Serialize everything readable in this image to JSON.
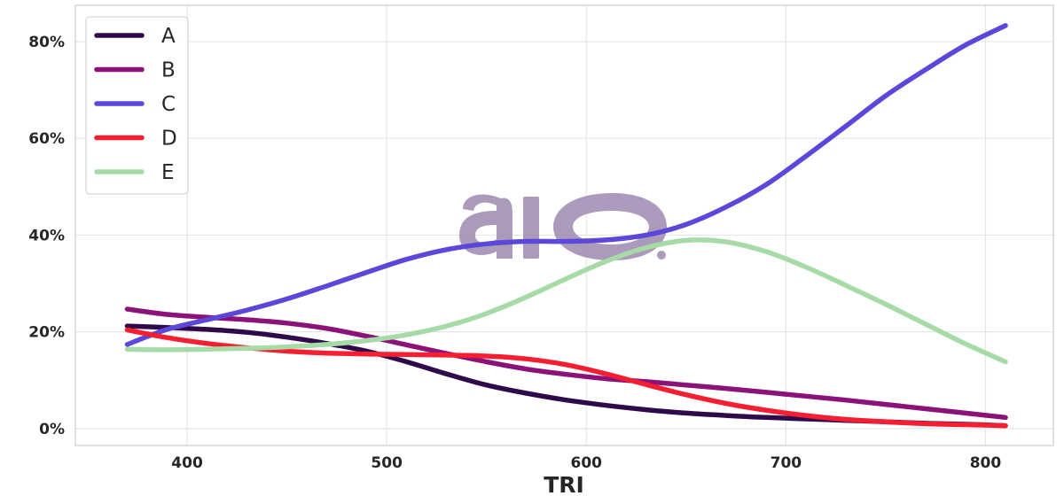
{
  "chart_data": {
    "type": "line",
    "title": "",
    "xlabel": "TRI",
    "ylabel": "",
    "xlim": [
      344,
      834
    ],
    "ylim": [
      -3.5,
      87.5
    ],
    "xticks": [
      400,
      500,
      600,
      700,
      800
    ],
    "yticks": [
      0,
      20,
      40,
      60,
      80
    ],
    "ytick_labels": [
      "0%",
      "20%",
      "40%",
      "60%",
      "80%"
    ],
    "grid": true,
    "legend_position": "top-left",
    "x": [
      370,
      390,
      410,
      430,
      450,
      470,
      490,
      510,
      530,
      550,
      570,
      590,
      610,
      630,
      650,
      670,
      690,
      710,
      730,
      750,
      770,
      790,
      810
    ],
    "series": [
      {
        "name": "A",
        "color": "#2e0a4a",
        "values": [
          21.2,
          20.9,
          20.5,
          19.9,
          18.9,
          17.6,
          16.0,
          13.8,
          11.3,
          9.0,
          7.3,
          5.9,
          4.8,
          3.9,
          3.2,
          2.7,
          2.3,
          2.0,
          1.7,
          1.4,
          1.1,
          0.9,
          0.6
        ]
      },
      {
        "name": "B",
        "color": "#8b1278",
        "values": [
          24.7,
          23.6,
          23.0,
          22.5,
          21.8,
          20.7,
          19.1,
          17.3,
          15.5,
          13.8,
          12.3,
          11.2,
          10.3,
          9.7,
          9.0,
          8.3,
          7.5,
          6.7,
          5.9,
          5.0,
          4.1,
          3.2,
          2.3
        ]
      },
      {
        "name": "C",
        "color": "#5b47d9",
        "values": [
          17.4,
          20.5,
          22.5,
          24.5,
          26.8,
          29.5,
          32.3,
          35.0,
          37.0,
          38.2,
          38.7,
          38.7,
          39.0,
          40.0,
          42.2,
          45.8,
          50.4,
          56.3,
          62.5,
          68.8,
          74.2,
          79.3,
          83.3
        ]
      },
      {
        "name": "D",
        "color": "#f71e32",
        "values": [
          20.4,
          18.8,
          17.6,
          16.7,
          16.0,
          15.6,
          15.4,
          15.3,
          15.2,
          15.0,
          14.4,
          13.2,
          11.3,
          9.1,
          7.0,
          5.2,
          3.8,
          2.7,
          1.9,
          1.4,
          1.0,
          0.8,
          0.6
        ]
      },
      {
        "name": "E",
        "color": "#a6dba8",
        "values": [
          16.4,
          16.3,
          16.4,
          16.6,
          16.9,
          17.4,
          18.2,
          19.4,
          21.2,
          23.8,
          27.2,
          31.0,
          34.6,
          37.4,
          38.9,
          38.6,
          36.6,
          33.4,
          29.6,
          25.7,
          21.6,
          17.5,
          13.8
        ]
      }
    ]
  },
  "watermark": {
    "color": "#9e89b0",
    "text": "aio."
  }
}
